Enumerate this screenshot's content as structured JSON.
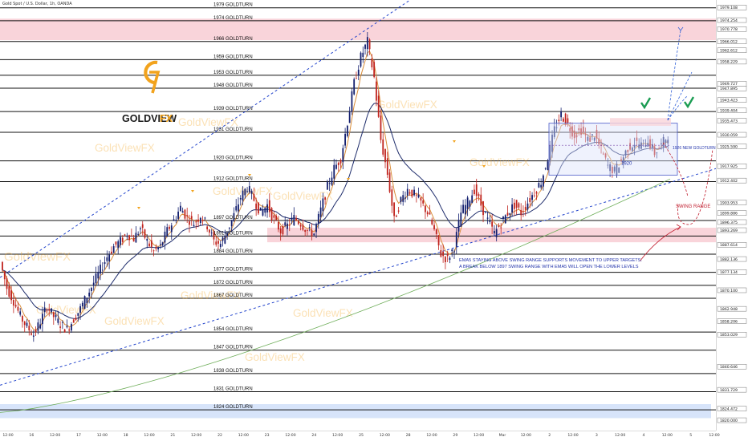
{
  "header": {
    "symbol_info": "Gold Spot / U.S. Dollar, 1h, OANDA"
  },
  "brand": {
    "name": "GOLDVIEW",
    "suffix": "FX",
    "watermark": "GoldViewFX",
    "gold": "#f2a31d",
    "dark": "#1a1a1a"
  },
  "colors": {
    "level_line": "#111111",
    "up_candle": "#131f6f",
    "down_candle": "#c0231d",
    "ema_fast": "#d98d3a",
    "ema_slow": "#1e2c6b",
    "ema_long": "#6fae5a",
    "trend_line": "#2244cc",
    "zone_red": "#f9d4da",
    "zone_blue": "#d7e4fa",
    "box_blue": "#dbe3fb",
    "annotation": "#2233aa",
    "swing_red": "#c01c2d",
    "check": "#1a9c52"
  },
  "chart_data": {
    "type": "candlestick",
    "y_axis_ticks": [
      "1979.108",
      "1974.254",
      "1970.778",
      "1966.012",
      "1962.612",
      "1958.229",
      "1949.727",
      "1947.895",
      "1943.423",
      "1939.404",
      "1935.473",
      "1930.059",
      "1925.590",
      "1917.925",
      "1912.402",
      "1903.953",
      "1899.886",
      "1896.375",
      "1893.269",
      "1887.614",
      "1882.136",
      "1877.134",
      "1870.100",
      "1862.948",
      "1858.206",
      "1853.029",
      "1840.646",
      "1831.729",
      "1824.472",
      "1820.000"
    ],
    "y_range": [
      1816,
      1982
    ],
    "x_ticks": [
      "12:00",
      "16",
      "12:00",
      "17",
      "12:00",
      "18",
      "12:00",
      "21",
      "12:00",
      "22",
      "12:00",
      "23",
      "12:00",
      "24",
      "12:00",
      "25",
      "12:00",
      "28",
      "12:00",
      "29",
      "12:00",
      "Mar",
      "12:00",
      "2",
      "12:00",
      "3",
      "12:00",
      "4",
      "12:00",
      "5",
      "12:00"
    ],
    "levels": [
      {
        "price": 1979,
        "label": "1979 GOLDTURN"
      },
      {
        "price": 1974,
        "label": "1974 GOLDTURN"
      },
      {
        "price": 1966,
        "label": "1966 GOLDTURN"
      },
      {
        "price": 1959,
        "label": "1959 GOLDTURN"
      },
      {
        "price": 1953,
        "label": "1953 GOLDTURN"
      },
      {
        "price": 1948,
        "label": "1948 GOLDTURN"
      },
      {
        "price": 1939,
        "label": "1939 GOLDTURN"
      },
      {
        "price": 1931,
        "label": "1931 GOLDTURN"
      },
      {
        "price": 1920,
        "label": "1920 GOLDTURN"
      },
      {
        "price": 1912,
        "label": "1912 GOLDTURN"
      },
      {
        "price": 1897,
        "label": "1897 GOLDTURN"
      },
      {
        "price": 1891,
        "label": "1891 GOLDTURN"
      },
      {
        "price": 1884,
        "label": "1884 GOLDTURN"
      },
      {
        "price": 1877,
        "label": "1877 GOLDTURN"
      },
      {
        "price": 1872,
        "label": "1872 GOLDTURN"
      },
      {
        "price": 1867,
        "label": "1867 GOLDTURN"
      },
      {
        "price": 1854,
        "label": "1854 GOLDTURN"
      },
      {
        "price": 1847,
        "label": "1847 GOLDTURN"
      },
      {
        "price": 1838,
        "label": "1838 GOLDTURN"
      },
      {
        "price": 1831,
        "label": "1831 GOLDTURN"
      },
      {
        "price": 1824,
        "label": "1824 GOLDTURN"
      }
    ],
    "new_goldturn_label": "1926 NEW GOLDTURN",
    "box_label": "1920",
    "swing_range_label": "SWING RANGE",
    "annotation_lines": [
      "EMA5 STAYING ABOVE SWING RANGE SUPPORTS MOVEMENT TO UPPER TARGETS.",
      "A BREAK BELOW 1897 SWING RANGE WITH EMA5 WILL OPEN THE LOWER LEVELS"
    ],
    "price_path": [
      1881,
      1871,
      1866,
      1860,
      1856,
      1853,
      1858,
      1864,
      1860,
      1857,
      1855,
      1859,
      1863,
      1868,
      1873,
      1878,
      1883,
      1887,
      1889,
      1892,
      1890,
      1894,
      1889,
      1885,
      1887,
      1893,
      1897,
      1902,
      1898,
      1896,
      1899,
      1895,
      1889,
      1888,
      1893,
      1899,
      1906,
      1910,
      1905,
      1900,
      1903,
      1897,
      1893,
      1895,
      1898,
      1896,
      1893,
      1892,
      1901,
      1910,
      1917,
      1921,
      1935,
      1950,
      1960,
      1966,
      1952,
      1928,
      1915,
      1897,
      1905,
      1909,
      1907,
      1904,
      1900,
      1893,
      1884,
      1882,
      1887,
      1900,
      1904,
      1909,
      1903,
      1897,
      1892,
      1896,
      1900,
      1903,
      1900,
      1904,
      1908,
      1912,
      1921,
      1932,
      1938,
      1934,
      1930,
      1932,
      1928,
      1930,
      1924,
      1918,
      1916,
      1920,
      1925,
      1927,
      1926,
      1928,
      1923,
      1926,
      1930
    ]
  }
}
